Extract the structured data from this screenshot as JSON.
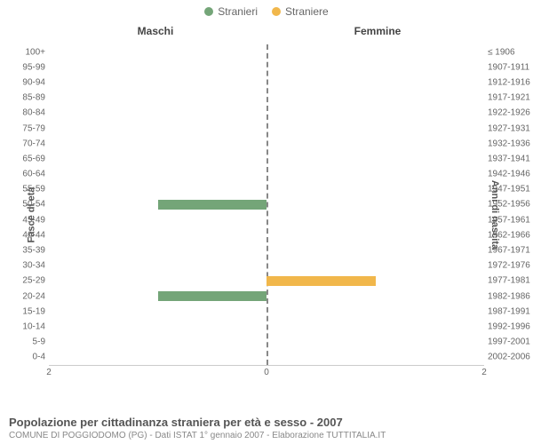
{
  "legend": {
    "male": {
      "label": "Stranieri",
      "color": "#74a578"
    },
    "female": {
      "label": "Straniere",
      "color": "#f1b74b"
    }
  },
  "panels": {
    "left": "Maschi",
    "right": "Femmine"
  },
  "axes": {
    "left_title": "Fasce di età",
    "right_title": "Anni di nascita",
    "xlim": 2,
    "xtick_left": "2",
    "xtick_center": "0",
    "xtick_right": "2"
  },
  "grid_color": "#e5e5e5",
  "center_line_color": "#888888",
  "rows": [
    {
      "age": "100+",
      "birth": "≤ 1906",
      "m": 0,
      "f": 0
    },
    {
      "age": "95-99",
      "birth": "1907-1911",
      "m": 0,
      "f": 0
    },
    {
      "age": "90-94",
      "birth": "1912-1916",
      "m": 0,
      "f": 0
    },
    {
      "age": "85-89",
      "birth": "1917-1921",
      "m": 0,
      "f": 0
    },
    {
      "age": "80-84",
      "birth": "1922-1926",
      "m": 0,
      "f": 0
    },
    {
      "age": "75-79",
      "birth": "1927-1931",
      "m": 0,
      "f": 0
    },
    {
      "age": "70-74",
      "birth": "1932-1936",
      "m": 0,
      "f": 0
    },
    {
      "age": "65-69",
      "birth": "1937-1941",
      "m": 0,
      "f": 0
    },
    {
      "age": "60-64",
      "birth": "1942-1946",
      "m": 0,
      "f": 0
    },
    {
      "age": "55-59",
      "birth": "1947-1951",
      "m": 0,
      "f": 0
    },
    {
      "age": "50-54",
      "birth": "1952-1956",
      "m": 1,
      "f": 0
    },
    {
      "age": "45-49",
      "birth": "1957-1961",
      "m": 0,
      "f": 0
    },
    {
      "age": "40-44",
      "birth": "1962-1966",
      "m": 0,
      "f": 0
    },
    {
      "age": "35-39",
      "birth": "1967-1971",
      "m": 0,
      "f": 0
    },
    {
      "age": "30-34",
      "birth": "1972-1976",
      "m": 0,
      "f": 0
    },
    {
      "age": "25-29",
      "birth": "1977-1981",
      "m": 0,
      "f": 1
    },
    {
      "age": "20-24",
      "birth": "1982-1986",
      "m": 1,
      "f": 0
    },
    {
      "age": "15-19",
      "birth": "1987-1991",
      "m": 0,
      "f": 0
    },
    {
      "age": "10-14",
      "birth": "1992-1996",
      "m": 0,
      "f": 0
    },
    {
      "age": "5-9",
      "birth": "1997-2001",
      "m": 0,
      "f": 0
    },
    {
      "age": "0-4",
      "birth": "2002-2006",
      "m": 0,
      "f": 0
    }
  ],
  "footer": {
    "title": "Popolazione per cittadinanza straniera per età e sesso - 2007",
    "sub": "COMUNE DI POGGIODOMO (PG) - Dati ISTAT 1° gennaio 2007 - Elaborazione TUTTITALIA.IT"
  }
}
